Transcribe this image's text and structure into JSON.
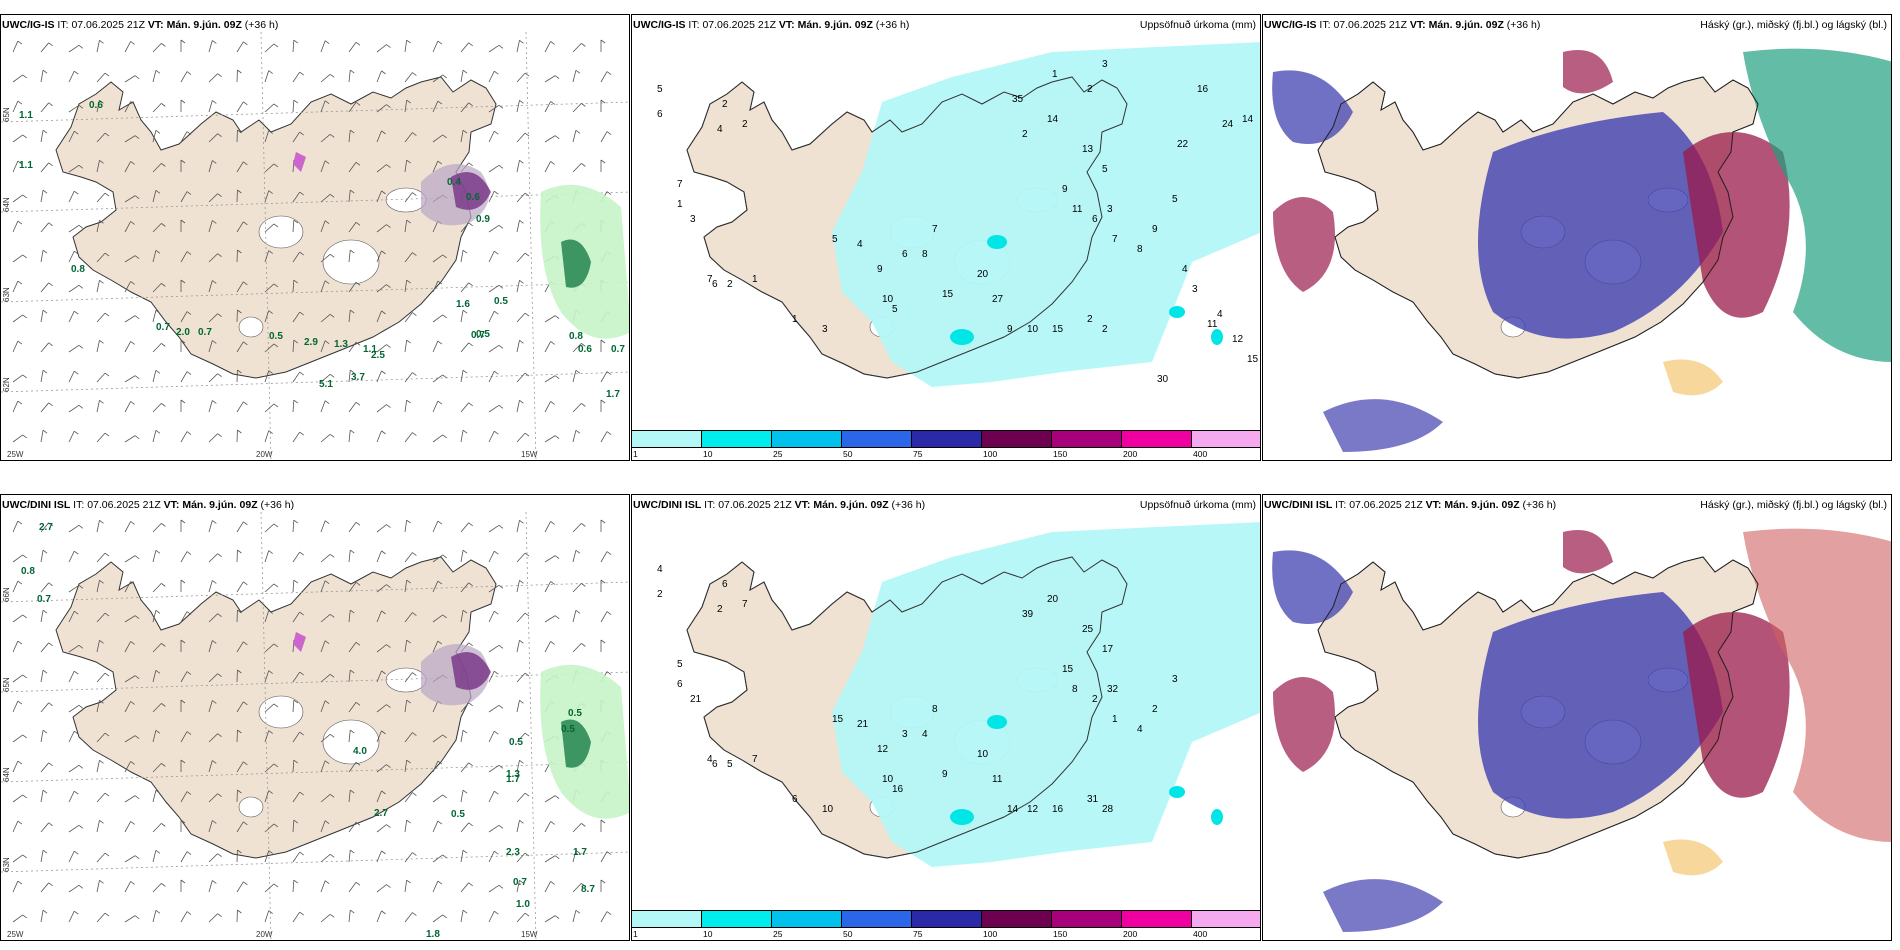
{
  "panels": [
    {
      "id": "ig-wind",
      "model": "UWC/IG-IS",
      "it_label": "IT:",
      "it": "07.06.2025 21Z",
      "vt_label": "VT:",
      "vt": "Mán. 9.jún. 09Z",
      "lead": "(+36 h)",
      "title_right": "",
      "lat_labels": [
        "65N",
        "64N",
        "63N",
        "62N"
      ],
      "lon_labels": [
        "25W",
        "20W",
        "15W"
      ],
      "values": [
        "0.6",
        "1.1",
        "0.8",
        "0.7",
        "2.0",
        "0.7",
        "0.5",
        "2.9",
        "1.3",
        "1.1",
        "2.5",
        "0.5",
        "0.7",
        "0.8",
        "0.4",
        "0.6",
        "0.9",
        "0.5",
        "1.6",
        "0.6",
        "0.7",
        "1.7",
        "1.1",
        "5.1",
        "3.7"
      ]
    },
    {
      "id": "ig-precip",
      "model": "UWC/IG-IS",
      "it_label": "IT:",
      "it": "07.06.2025 21Z",
      "vt_label": "VT:",
      "vt": "Mán. 9.jún. 09Z",
      "lead": "(+36 h)",
      "title_right": "Uppsöfnuð úrkoma (mm)",
      "values": [
        "5",
        "6",
        "2",
        "4",
        "2",
        "7",
        "1",
        "3",
        "7",
        "6",
        "2",
        "1",
        "1",
        "3",
        "5",
        "4",
        "9",
        "10",
        "5",
        "6",
        "8",
        "7",
        "15",
        "20",
        "27",
        "9",
        "10",
        "15",
        "2",
        "2",
        "3",
        "2",
        "14",
        "13",
        "5",
        "9",
        "11",
        "6",
        "7",
        "8",
        "9",
        "5",
        "4",
        "3",
        "4",
        "11",
        "12",
        "15",
        "30",
        "22",
        "24",
        "14",
        "16",
        "35",
        "1",
        "2",
        "3"
      ]
    },
    {
      "id": "ig-cloud",
      "model": "UWC/IG-IS",
      "it_label": "IT:",
      "it": "07.06.2025 21Z",
      "vt_label": "VT:",
      "vt": "Mán. 9.jún. 09Z",
      "lead": "(+36 h)",
      "title_right": "Háský (gr.), miðský (fj.bl.) og lágský (bl.)"
    },
    {
      "id": "dini-wind",
      "model": "UWC/DINI ISL",
      "it_label": "IT:",
      "it": "07.06.2025 21Z",
      "vt_label": "VT:",
      "vt": "Mán. 9.jún. 09Z",
      "lead": "(+36 h)",
      "title_right": "",
      "lat_labels": [
        "66N",
        "65N",
        "64N",
        "63N"
      ],
      "lon_labels": [
        "25W",
        "20W",
        "15W"
      ],
      "values": [
        "2.7",
        "0.8",
        "0.7",
        "0.5",
        "2.7",
        "0.5",
        "1.7",
        "4.0",
        "0.5",
        "1.3",
        "2.3",
        "0.7",
        "1.0",
        "8.7",
        "1.7",
        "1.8",
        "0.5"
      ]
    },
    {
      "id": "dini-precip",
      "model": "UWC/DINI ISL",
      "it_label": "IT:",
      "it": "07.06.2025 21Z",
      "vt_label": "VT:",
      "vt": "Mán. 9.jún. 09Z",
      "lead": "(+36 h)",
      "title_right": "Uppsöfnuð úrkoma (mm)",
      "values": [
        "4",
        "2",
        "6",
        "2",
        "7",
        "5",
        "6",
        "21",
        "4",
        "6",
        "5",
        "7",
        "6",
        "10",
        "15",
        "21",
        "12",
        "10",
        "16",
        "3",
        "4",
        "8",
        "9",
        "10",
        "11",
        "14",
        "12",
        "16",
        "31",
        "28",
        "32",
        "39",
        "20",
        "25",
        "17",
        "15",
        "8",
        "2",
        "1",
        "4",
        "2",
        "3"
      ]
    },
    {
      "id": "dini-cloud",
      "model": "UWC/DINI ISL",
      "it_label": "IT:",
      "it": "07.06.2025 21Z",
      "vt_label": "VT:",
      "vt": "Mán. 9.jún. 09Z",
      "lead": "(+36 h)",
      "title_right": "Háský (gr.), miðský (fj.bl.) og lágský (bl.)"
    }
  ],
  "scale": {
    "labels": [
      "1",
      "10",
      "25",
      "50",
      "75",
      "100",
      "150",
      "200",
      "400"
    ],
    "colors": [
      "#b3f7f7",
      "#00eded",
      "#00c2ed",
      "#2a66e8",
      "#2a2aa8",
      "#6e0050",
      "#a8007a",
      "#f000a0",
      "#f5aaf0"
    ]
  },
  "colors": {
    "land": "#efe2d3",
    "sea": "#ffffff",
    "precip_light": "#b3f7f7",
    "precip_mid": "#00e5e5",
    "green_light": "#c8f4c8",
    "green_dark": "#2e8b57",
    "purple": "#7a3a8a",
    "cloud_high": "#9a1a4a",
    "cloud_mid": "#4040b0",
    "cloud_low": "#20a080",
    "cloud_yellow": "#f6d08a"
  }
}
